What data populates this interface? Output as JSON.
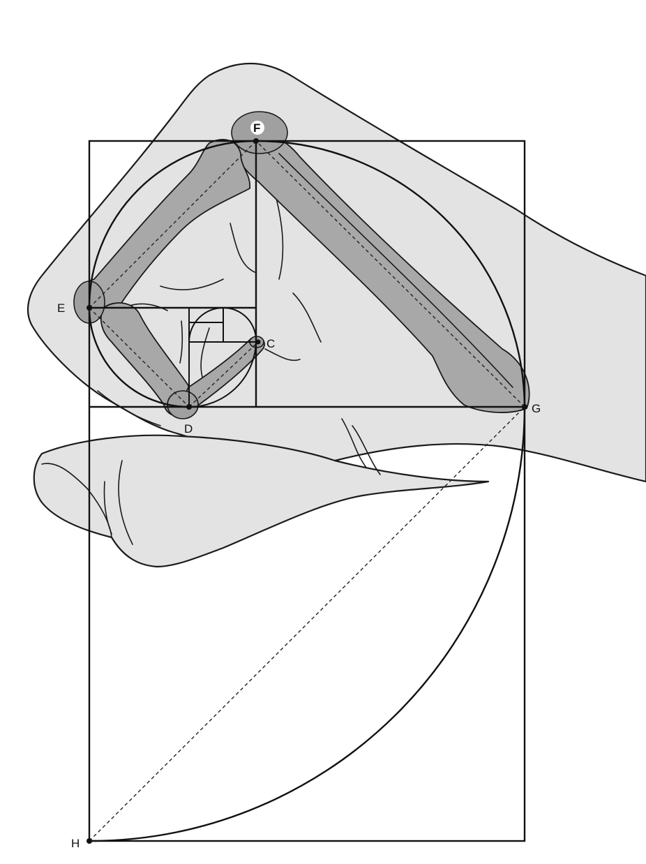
{
  "labels": {
    "c": "C",
    "d": "D",
    "e": "E",
    "f": "F",
    "g": "G",
    "h": "H"
  },
  "colors": {
    "skin": "#e3e3e3",
    "bone": "#a8a8a8",
    "line": "#111111",
    "background": "#ffffff"
  }
}
